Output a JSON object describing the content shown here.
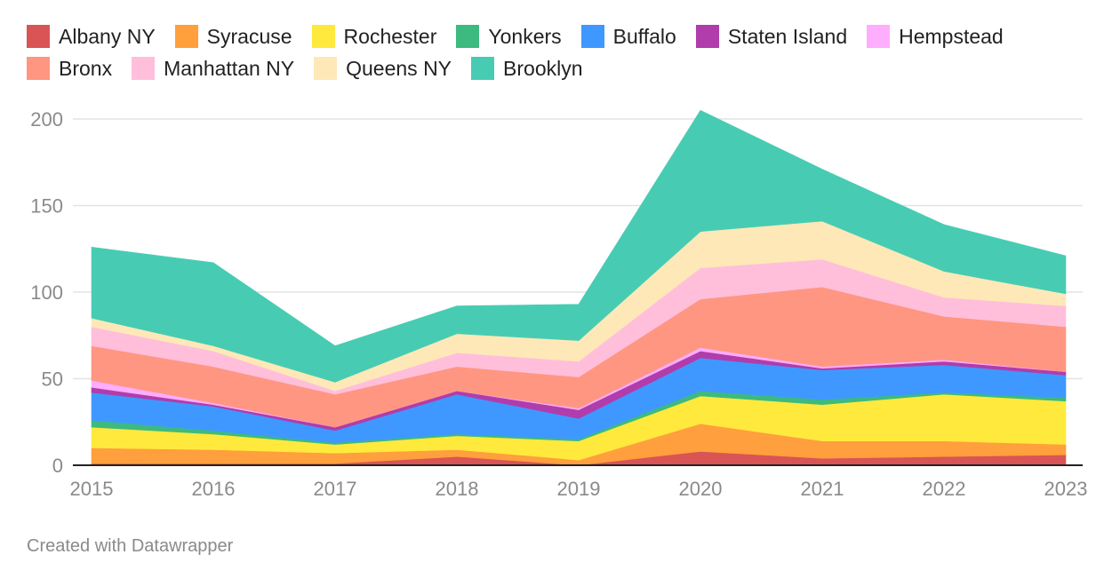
{
  "chart_data": {
    "type": "area",
    "stacked": true,
    "x": [
      "2015",
      "2016",
      "2017",
      "2018",
      "2019",
      "2020",
      "2021",
      "2022",
      "2023"
    ],
    "ylim": [
      0,
      210
    ],
    "yticks": [
      0,
      50,
      100,
      150,
      200
    ],
    "grid": true,
    "legend_position": "top",
    "series": [
      {
        "name": "Albany NY",
        "color": "#d95454",
        "values": [
          1,
          1,
          1,
          5,
          0,
          8,
          4,
          5,
          6
        ]
      },
      {
        "name": "Syracuse",
        "color": "#ff9f3d",
        "values": [
          9,
          8,
          6,
          4,
          3,
          16,
          10,
          9,
          6
        ]
      },
      {
        "name": "Rochester",
        "color": "#ffe93d",
        "values": [
          12,
          9,
          5,
          8,
          11,
          16,
          21,
          27,
          25
        ]
      },
      {
        "name": "Yonkers",
        "color": "#3dba7f",
        "values": [
          4,
          2,
          1,
          1,
          1,
          3,
          3,
          1,
          2
        ]
      },
      {
        "name": "Buffalo",
        "color": "#3f98ff",
        "values": [
          16,
          14,
          7,
          23,
          12,
          19,
          17,
          16,
          13
        ]
      },
      {
        "name": "Staten Island",
        "color": "#b03dab",
        "values": [
          3,
          1,
          2,
          2,
          5,
          4,
          1,
          2,
          2
        ]
      },
      {
        "name": "Hempstead",
        "color": "#ffadff",
        "values": [
          4,
          1,
          0,
          0,
          1,
          2,
          1,
          1,
          0
        ]
      },
      {
        "name": "Bronx",
        "color": "#ff9682",
        "values": [
          20,
          21,
          19,
          14,
          18,
          28,
          46,
          25,
          26
        ]
      },
      {
        "name": "Manhattan NY",
        "color": "#ffbfdb",
        "values": [
          11,
          9,
          2,
          8,
          9,
          18,
          16,
          11,
          12
        ]
      },
      {
        "name": "Queens NY",
        "color": "#ffe8b8",
        "values": [
          5,
          3,
          5,
          11,
          12,
          21,
          22,
          15,
          7
        ]
      },
      {
        "name": "Brooklyn",
        "color": "#47ccb3",
        "values": [
          41,
          48,
          21,
          16,
          21,
          70,
          30,
          27,
          22
        ]
      }
    ]
  },
  "credit": "Created with Datawrapper"
}
